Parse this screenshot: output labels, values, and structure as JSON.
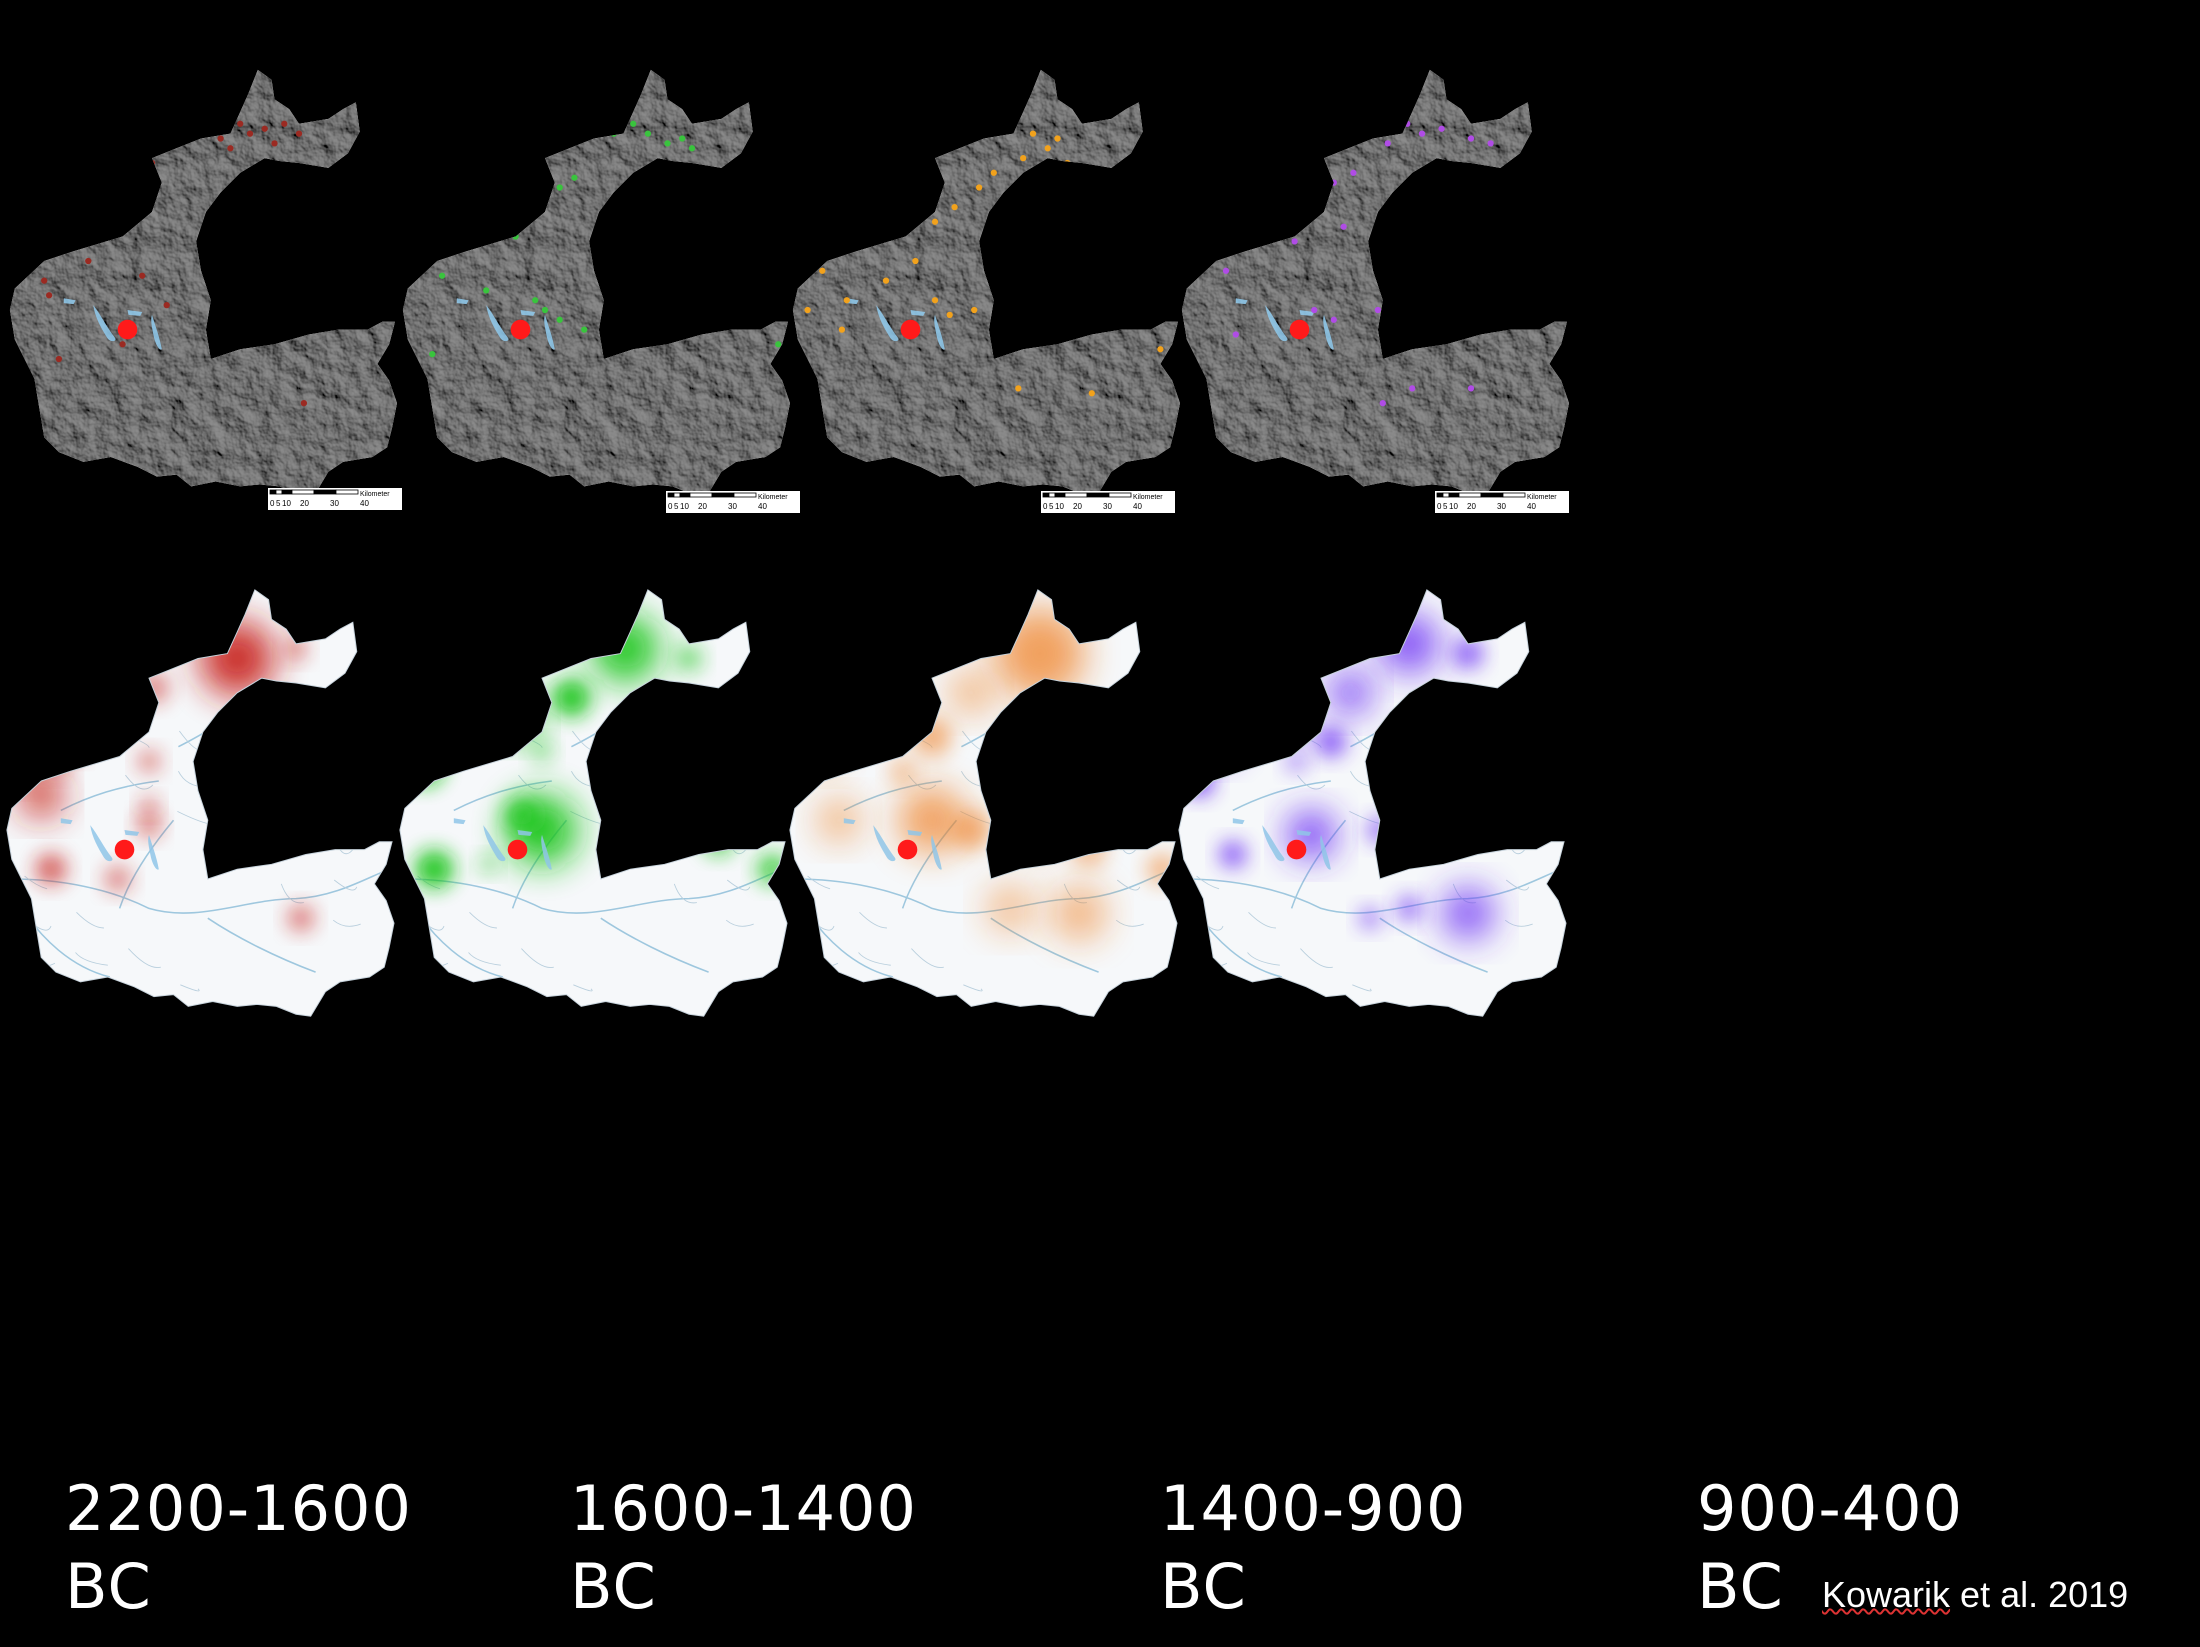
{
  "panels": [
    {
      "period_line1": "2200-1600",
      "period_line2": "BC",
      "color": "#c8201a",
      "dot_color": "#9b2a22"
    },
    {
      "period_line1": "1600-1400",
      "period_line2": "BC",
      "color": "#19c419",
      "dot_color": "#39c43d"
    },
    {
      "period_line1": "1400-900",
      "period_line2": "BC",
      "color": "#ef7c1d",
      "dot_color": "#f2a21c"
    },
    {
      "period_line1": "900-400",
      "period_line2": "BC",
      "color": "#6a2ff5",
      "dot_color": "#b04ce6"
    }
  ],
  "scale_bar": {
    "unit_label": "Kilometer",
    "ticks": [
      "0",
      "5",
      "10",
      "20",
      "30",
      "40"
    ]
  },
  "marker_color": "#ff1a1a",
  "terrain_color": "#8e8e8e",
  "river_color": "#8fc6e8",
  "citation": {
    "author": "Kowarik",
    "rest": " et al. 2019"
  }
}
